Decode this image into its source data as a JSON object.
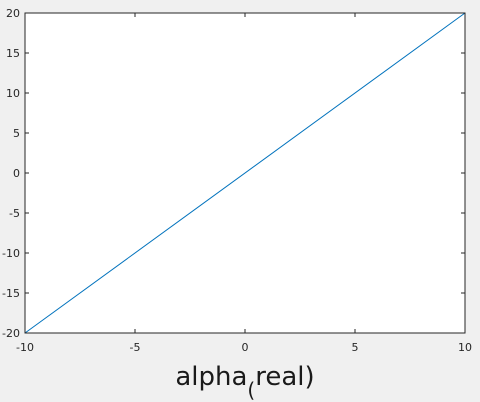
{
  "chart_data": {
    "type": "line",
    "title": "",
    "xlabel": {
      "base": "alpha",
      "sub": "(",
      "tail": "real)"
    },
    "ylabel": "",
    "xlim": [
      -10,
      10
    ],
    "ylim": [
      -20,
      20
    ],
    "xticks": [
      -10,
      -5,
      0,
      5,
      10
    ],
    "yticks": [
      -20,
      -15,
      -10,
      -5,
      0,
      5,
      10,
      15,
      20
    ],
    "xtick_labels": [
      "-10",
      "-5",
      "0",
      "5",
      "10"
    ],
    "ytick_labels": [
      "-20",
      "-15",
      "-10",
      "-5",
      "0",
      "5",
      "10",
      "15",
      "20"
    ],
    "grid": false,
    "series": [
      {
        "name": "alpha",
        "x": [
          -10,
          10
        ],
        "y": [
          -20,
          20
        ],
        "color": "#0072bd"
      }
    ]
  },
  "colors": {
    "figure_bg": "#f0f0f0",
    "axes_bg": "#ffffff",
    "axis": "#262626",
    "line": "#0072bd"
  }
}
